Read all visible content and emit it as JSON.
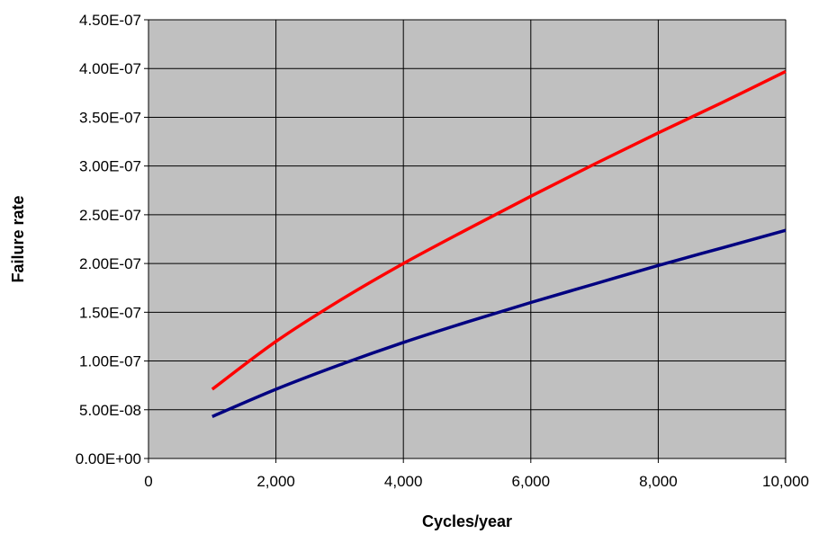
{
  "chart_data": {
    "type": "line",
    "title": "",
    "xlabel": "Cycles/year",
    "ylabel": "Failure rate",
    "xlim": [
      0,
      10000
    ],
    "ylim": [
      0,
      4.5e-07
    ],
    "x_ticks": [
      0,
      2000,
      4000,
      6000,
      8000,
      10000
    ],
    "x_tick_labels": [
      "0",
      "2,000",
      "4,000",
      "6,000",
      "8,000",
      "10,000"
    ],
    "y_ticks": [
      0,
      5e-08,
      1e-07,
      1.5e-07,
      2e-07,
      2.5e-07,
      3e-07,
      3.5e-07,
      4e-07,
      4.5e-07
    ],
    "y_tick_labels": [
      "0.00E+00",
      "5.00E-08",
      "1.00E-07",
      "1.50E-07",
      "2.00E-07",
      "2.50E-07",
      "3.00E-07",
      "3.50E-07",
      "4.00E-07",
      "4.50E-07"
    ],
    "grid": true,
    "legend": "none",
    "plot_background": "#c0c0c0",
    "series": [
      {
        "color": "#ff0000",
        "x": [
          1000,
          2000,
          3000,
          4000,
          5000,
          6000,
          7000,
          8000,
          9000,
          10000
        ],
        "values": [
          7.1e-08,
          1.2e-07,
          1.62e-07,
          2e-07,
          2.35e-07,
          2.69e-07,
          3.02e-07,
          3.34e-07,
          3.65e-07,
          3.97e-07
        ]
      },
      {
        "color": "#000080",
        "x": [
          1000,
          2000,
          3000,
          4000,
          5000,
          6000,
          7000,
          8000,
          9000,
          10000
        ],
        "values": [
          4.3e-08,
          7.1e-08,
          9.6e-08,
          1.19e-07,
          1.4e-07,
          1.6e-07,
          1.79e-07,
          1.98e-07,
          2.16e-07,
          2.34e-07
        ]
      }
    ]
  }
}
